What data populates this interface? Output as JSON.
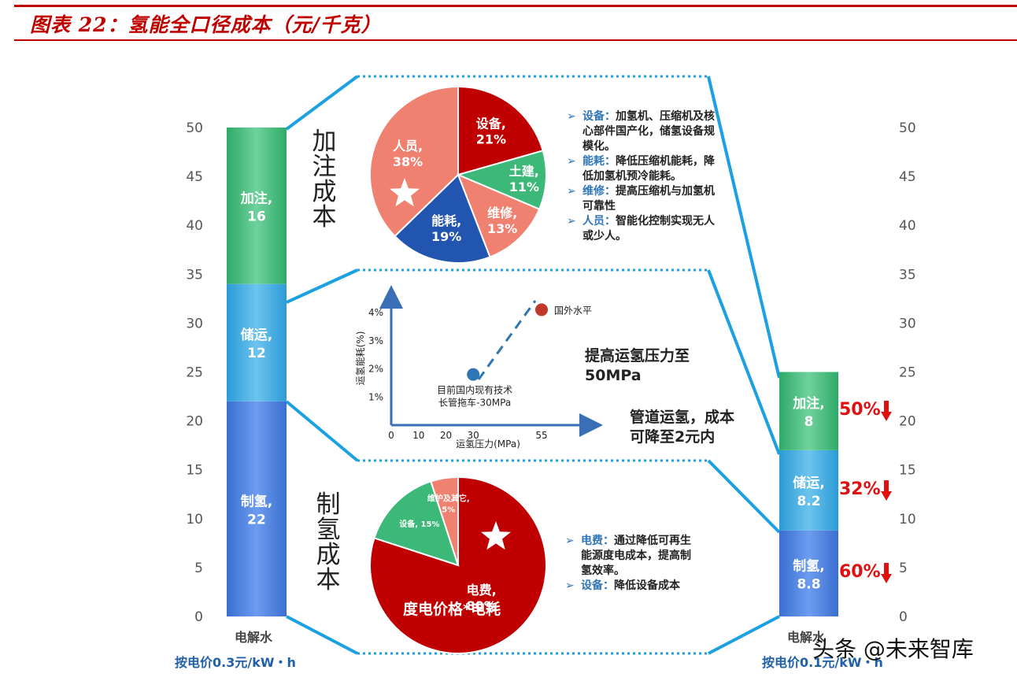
{
  "header": {
    "title": "图表 22：氢能全口径成本（元/千克）"
  },
  "left_bar": {
    "category": "电解水",
    "subtitle": "按电价0.3元/kW・h",
    "segments": [
      {
        "label": "制氢,",
        "value_text": "22",
        "value": 22,
        "color": "#4a7fdc"
      },
      {
        "label": "储运,",
        "value_text": "12",
        "value": 12,
        "color": "#3fa8dd"
      },
      {
        "label": "加注,",
        "value_text": "16",
        "value": 16,
        "color": "#3cb878"
      }
    ]
  },
  "right_bar": {
    "category": "电解水",
    "subtitle": "按电价0.1元/kW・h",
    "segments": [
      {
        "label": "制氢,",
        "value_text": "8.8",
        "value": 8.8,
        "color": "#4a7fdc",
        "reduction": "60%"
      },
      {
        "label": "储运,",
        "value_text": "8.2",
        "value": 8.2,
        "color": "#3fa8dd",
        "reduction": "32%"
      },
      {
        "label": "加注,",
        "value_text": "8",
        "value": 8,
        "color": "#3cb878",
        "reduction": "50%"
      }
    ]
  },
  "chart_data": [
    {
      "type": "bar",
      "stacked": true,
      "categories": [
        "电解水 按电价0.3元/kW・h",
        "电解水 按电价0.1元/kW・h"
      ],
      "series": [
        {
          "name": "制氢",
          "values": [
            22,
            8.8
          ]
        },
        {
          "name": "储运",
          "values": [
            12,
            8.2
          ]
        },
        {
          "name": "加注",
          "values": [
            16,
            8
          ]
        }
      ],
      "ylim": [
        0,
        50
      ],
      "yticks": [
        0,
        5,
        10,
        15,
        20,
        25,
        30,
        35,
        40,
        45,
        50
      ],
      "reductions": {
        "制氢": "60%",
        "储运": "32%",
        "加注": "50%"
      }
    },
    {
      "type": "pie",
      "title": "加注成本",
      "slices": [
        {
          "name": "设备",
          "label": "设备,",
          "value_text": "21%",
          "value": 21,
          "color": "#c00000"
        },
        {
          "name": "土建",
          "label": "土建,",
          "value_text": "11%",
          "value": 11,
          "color": "#3cb878"
        },
        {
          "name": "维修",
          "label": "维修,",
          "value_text": "13%",
          "value": 13,
          "color": "#f08070"
        },
        {
          "name": "能耗",
          "label": "能耗,",
          "value_text": "19%",
          "value": 19,
          "color": "#2255b0"
        },
        {
          "name": "人员",
          "label": "人员,",
          "value_text": "38%",
          "value": 38,
          "color": "#f08070"
        }
      ]
    },
    {
      "type": "scatter",
      "xlabel": "运氢压力(MPa)",
      "ylabel": "运氢能耗(%)",
      "xticks": [
        "0",
        "10",
        "20",
        "30",
        "55"
      ],
      "yticks": [
        "1%",
        "2%",
        "3%",
        "4%"
      ],
      "points": [
        {
          "label": "目前国内现有技术\n长管拖车-30MPa",
          "x": 30,
          "y": 1.8,
          "color": "#2e75b6"
        },
        {
          "label": "国外水平",
          "x": 55,
          "y": 4.1,
          "color": "#c0392b"
        }
      ]
    },
    {
      "type": "pie",
      "title": "制氢成本",
      "caption": "度电价格*电耗",
      "slices": [
        {
          "name": "电费",
          "label": "电费,",
          "value_text": "80%",
          "value": 80,
          "color": "#c00000"
        },
        {
          "name": "设备",
          "label": "设备, 15%",
          "value_text": "15%",
          "value": 15,
          "color": "#3cb878"
        },
        {
          "name": "维护及其它",
          "label": "维护及其它,",
          "value_text": "5%",
          "value": 5,
          "color": "#f08070"
        }
      ]
    }
  ],
  "sections": {
    "refuel_title": "加注成本",
    "produce_title": "制氢成本"
  },
  "refuel_notes": [
    {
      "key": "设备：",
      "text": "加氢机、压缩机及核心部件国产化，储氢设备规模化。"
    },
    {
      "key": "能耗：",
      "text": "降低压缩机能耗，降低加氢机预冷能耗。"
    },
    {
      "key": "维修：",
      "text": "提高压缩机与加氢机可靠性"
    },
    {
      "key": "人员：",
      "text": "智能化控制实现无人或少人。"
    }
  ],
  "produce_notes": [
    {
      "key": "电费：",
      "text": "通过降低可再生能源度电成本，提高制氢效率。"
    },
    {
      "key": "设备：",
      "text": "降低设备成本"
    }
  ],
  "transport": {
    "note1": "提高运氢压力至 50MPa",
    "note2": "管道运氢，成本可降至2元内"
  },
  "watermark": "头条 @未来智库",
  "colors": {
    "accent": "#c00000",
    "blue": "#2e75b6",
    "cyan": "#1ba1e2",
    "green": "#3cb878"
  }
}
